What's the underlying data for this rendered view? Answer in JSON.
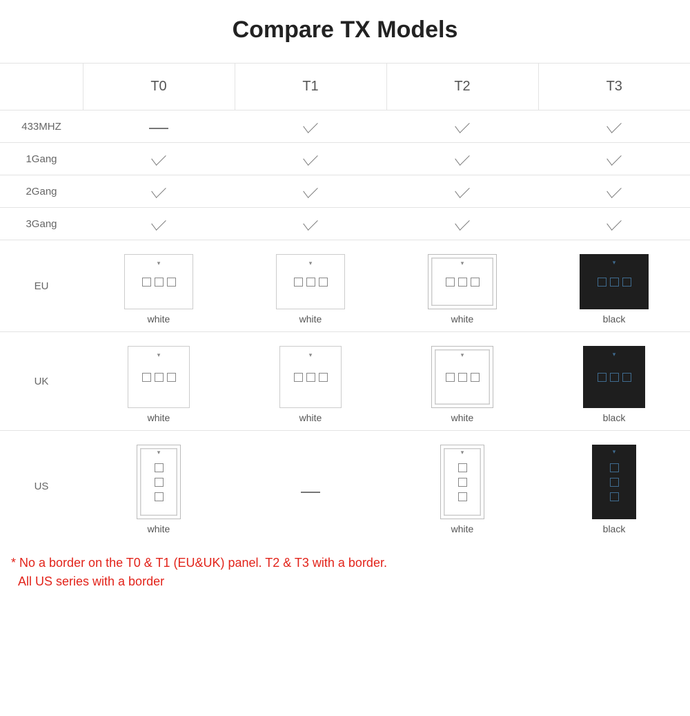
{
  "title": "Compare TX Models",
  "columns": [
    "T0",
    "T1",
    "T2",
    "T3"
  ],
  "featureRows": [
    {
      "label": "433MHZ",
      "cells": [
        "dash",
        "check",
        "check",
        "check"
      ]
    },
    {
      "label": "1Gang",
      "cells": [
        "check",
        "check",
        "check",
        "check"
      ]
    },
    {
      "label": "2Gang",
      "cells": [
        "check",
        "check",
        "check",
        "check"
      ]
    },
    {
      "label": "3Gang",
      "cells": [
        "check",
        "check",
        "check",
        "check"
      ]
    }
  ],
  "regionRows": [
    {
      "label": "EU",
      "shape": "h",
      "cells": [
        {
          "color": "white",
          "border": false,
          "caption": "white"
        },
        {
          "color": "white",
          "border": false,
          "caption": "white"
        },
        {
          "color": "white",
          "border": true,
          "caption": "white"
        },
        {
          "color": "black",
          "border": true,
          "caption": "black"
        }
      ]
    },
    {
      "label": "UK",
      "shape": "sq",
      "cells": [
        {
          "color": "white",
          "border": false,
          "caption": "white"
        },
        {
          "color": "white",
          "border": false,
          "caption": "white"
        },
        {
          "color": "white",
          "border": true,
          "caption": "white"
        },
        {
          "color": "black",
          "border": true,
          "caption": "black"
        }
      ]
    },
    {
      "label": "US",
      "shape": "v",
      "cells": [
        {
          "color": "white",
          "border": true,
          "caption": "white"
        },
        {
          "dash": true
        },
        {
          "color": "white",
          "border": true,
          "caption": "white"
        },
        {
          "color": "black",
          "border": true,
          "caption": "black"
        }
      ]
    }
  ],
  "footnote_line1": "* No a border on the T0 & T1 (EU&UK) panel. T2 & T3 with a border.",
  "footnote_line2": "  All US series with a border",
  "colors": {
    "title": "#222222",
    "border": "#e3e3e3",
    "text": "#555555",
    "check": "#777777",
    "footnote": "#e2231a",
    "blackPanel": "#1e1e1e",
    "blackAccent": "#3f6b8f"
  }
}
